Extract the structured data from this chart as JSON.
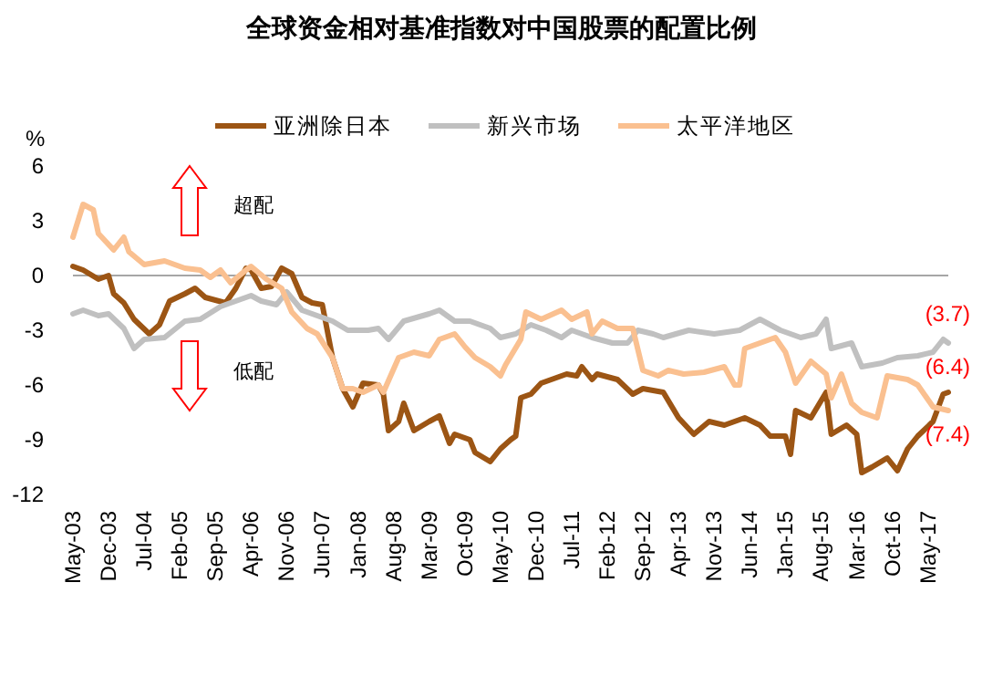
{
  "chart_data": {
    "type": "line",
    "title": "全球资金相对基准指数对中国股票的配置比例",
    "ylabel": "%",
    "legend": "top",
    "xlim": [
      "2003-05",
      "2017-09"
    ],
    "xticks": [
      {
        "value": "2003-05",
        "label": "May-03"
      },
      {
        "value": "2003-12",
        "label": "Dec-03"
      },
      {
        "value": "2004-07",
        "label": "Jul-04"
      },
      {
        "value": "2005-02",
        "label": "Feb-05"
      },
      {
        "value": "2005-09",
        "label": "Sep-05"
      },
      {
        "value": "2006-04",
        "label": "Apr-06"
      },
      {
        "value": "2006-11",
        "label": "Nov-06"
      },
      {
        "value": "2007-06",
        "label": "Jun-07"
      },
      {
        "value": "2008-01",
        "label": "Jan-08"
      },
      {
        "value": "2008-08",
        "label": "Aug-08"
      },
      {
        "value": "2009-03",
        "label": "Mar-09"
      },
      {
        "value": "2009-10",
        "label": "Oct-09"
      },
      {
        "value": "2010-05",
        "label": "May-10"
      },
      {
        "value": "2010-12",
        "label": "Dec-10"
      },
      {
        "value": "2011-07",
        "label": "Jul-11"
      },
      {
        "value": "2012-02",
        "label": "Feb-12"
      },
      {
        "value": "2012-09",
        "label": "Sep-12"
      },
      {
        "value": "2013-04",
        "label": "Apr-13"
      },
      {
        "value": "2013-11",
        "label": "Nov-13"
      },
      {
        "value": "2014-06",
        "label": "Jun-14"
      },
      {
        "value": "2015-01",
        "label": "Jan-15"
      },
      {
        "value": "2015-08",
        "label": "Aug-15"
      },
      {
        "value": "2016-03",
        "label": "Mar-16"
      },
      {
        "value": "2016-10",
        "label": "Oct-16"
      },
      {
        "value": "2017-05",
        "label": "May-17"
      }
    ],
    "ylim": [
      -12,
      6
    ],
    "yticks": [
      6,
      3,
      0,
      -3,
      -6,
      -9,
      -12
    ],
    "ref_lines": [
      {
        "axis": "y",
        "value": 0,
        "color": "#a6a6a6"
      }
    ],
    "annotations": [
      "超配",
      "低配",
      {
        "text": "(3.7)",
        "x": "2017-09",
        "y": -3.7
      },
      {
        "text": "(6.4)",
        "x": "2017-09",
        "y": -6.4
      },
      {
        "text": "(7.4)",
        "x": "2017-09",
        "y": -7.4
      }
    ],
    "series": [
      {
        "name": "亚洲除日本",
        "color": "#9c5514",
        "x": [
          "2003-05",
          "2003-07",
          "2003-10",
          "2003-12",
          "2004-01",
          "2004-03",
          "2004-05",
          "2004-08",
          "2004-10",
          "2004-12",
          "2005-03",
          "2005-05",
          "2005-07",
          "2005-11",
          "2006-01",
          "2006-03",
          "2006-04",
          "2006-06",
          "2006-08",
          "2006-10",
          "2006-12",
          "2007-02",
          "2007-04",
          "2007-06",
          "2007-08",
          "2007-10",
          "2007-12",
          "2008-02",
          "2008-05",
          "2008-06",
          "2008-07",
          "2008-09",
          "2008-10",
          "2008-12",
          "2009-03",
          "2009-05",
          "2009-07",
          "2009-08",
          "2009-11",
          "2009-12",
          "2010-03",
          "2010-05",
          "2010-07",
          "2010-08",
          "2010-09",
          "2010-11",
          "2011-01",
          "2011-03",
          "2011-06",
          "2011-08",
          "2011-09",
          "2011-11",
          "2011-12",
          "2012-04",
          "2012-07",
          "2012-09",
          "2013-01",
          "2013-04",
          "2013-07",
          "2013-10",
          "2014-01",
          "2014-05",
          "2014-08",
          "2014-10",
          "2015-01",
          "2015-02",
          "2015-03",
          "2015-06",
          "2015-09",
          "2015-10",
          "2016-01",
          "2016-03",
          "2016-04",
          "2016-06",
          "2016-09",
          "2016-11",
          "2017-01",
          "2017-03",
          "2017-06",
          "2017-08",
          "2017-09"
        ],
        "values": [
          0.5,
          0.3,
          -0.2,
          0,
          -1,
          -1.5,
          -2.4,
          -3.2,
          -2.7,
          -1.4,
          -1,
          -0.7,
          -1.2,
          -1.5,
          -0.7,
          0.4,
          0.3,
          -0.7,
          -0.6,
          0.4,
          0.1,
          -1.2,
          -1.5,
          -1.6,
          -4.5,
          -6.2,
          -7.2,
          -5.9,
          -6,
          -6.5,
          -8.5,
          -8,
          -7,
          -8.5,
          -8,
          -7.7,
          -9.2,
          -8.7,
          -9,
          -9.7,
          -10.2,
          -9.5,
          -9,
          -8.8,
          -6.7,
          -6.5,
          -5.9,
          -5.7,
          -5.4,
          -5.5,
          -5,
          -5.7,
          -5.4,
          -5.7,
          -6.5,
          -6.2,
          -6.4,
          -7.8,
          -8.7,
          -8,
          -8.2,
          -7.8,
          -8.2,
          -8.8,
          -8.8,
          -9.8,
          -7.4,
          -7.8,
          -6.4,
          -8.7,
          -8.2,
          -8.7,
          -10.8,
          -10.5,
          -10,
          -10.7,
          -9.5,
          -8.8,
          -8,
          -6.5,
          -6.4
        ]
      },
      {
        "name": "新兴市场",
        "color": "#c0c0c0",
        "x": [
          "2003-05",
          "2003-07",
          "2003-10",
          "2003-12",
          "2004-03",
          "2004-05",
          "2004-07",
          "2004-11",
          "2005-03",
          "2005-06",
          "2005-10",
          "2006-01",
          "2006-04",
          "2006-06",
          "2006-09",
          "2006-11",
          "2007-02",
          "2007-05",
          "2007-08",
          "2007-11",
          "2008-03",
          "2008-05",
          "2008-07",
          "2008-10",
          "2009-03",
          "2009-05",
          "2009-08",
          "2009-11",
          "2010-03",
          "2010-05",
          "2010-08",
          "2010-11",
          "2011-02",
          "2011-05",
          "2011-07",
          "2011-11",
          "2012-03",
          "2012-06",
          "2012-08",
          "2012-11",
          "2013-01",
          "2013-06",
          "2013-11",
          "2014-04",
          "2014-08",
          "2014-12",
          "2015-04",
          "2015-07",
          "2015-09",
          "2015-10",
          "2016-02",
          "2016-04",
          "2016-08",
          "2016-11",
          "2017-03",
          "2017-06",
          "2017-08",
          "2017-09"
        ],
        "values": [
          -2.1,
          -1.9,
          -2.2,
          -2.1,
          -2.9,
          -4,
          -3.5,
          -3.4,
          -2.5,
          -2.4,
          -1.7,
          -1.4,
          -1.1,
          -1.4,
          -1.6,
          -0.9,
          -1.9,
          -2.2,
          -2.5,
          -3,
          -3,
          -2.9,
          -3.5,
          -2.5,
          -2.1,
          -1.9,
          -2.5,
          -2.5,
          -2.9,
          -3.4,
          -3.2,
          -2.7,
          -3,
          -3.4,
          -3,
          -3.4,
          -3.7,
          -3.7,
          -3,
          -3.2,
          -3.4,
          -3,
          -3.2,
          -3,
          -2.4,
          -3,
          -3.4,
          -3.2,
          -2.4,
          -4,
          -3.7,
          -5,
          -4.8,
          -4.5,
          -4.4,
          -4.2,
          -3.5,
          -3.7
        ]
      },
      {
        "name": "太平洋地区",
        "color": "#fac090",
        "x": [
          "2003-05",
          "2003-07",
          "2003-09",
          "2003-10",
          "2004-01",
          "2004-03",
          "2004-04",
          "2004-07",
          "2004-11",
          "2005-03",
          "2005-06",
          "2005-08",
          "2005-10",
          "2005-12",
          "2006-03",
          "2006-04",
          "2006-07",
          "2006-10",
          "2006-12",
          "2007-03",
          "2007-05",
          "2007-08",
          "2007-10",
          "2007-12",
          "2008-02",
          "2008-05",
          "2008-06",
          "2008-09",
          "2008-12",
          "2009-03",
          "2009-05",
          "2009-08",
          "2009-10",
          "2009-12",
          "2010-03",
          "2010-05",
          "2010-06",
          "2010-09",
          "2010-10",
          "2011-01",
          "2011-05",
          "2011-07",
          "2011-10",
          "2011-11",
          "2012-01",
          "2012-04",
          "2012-07",
          "2012-09",
          "2012-12",
          "2013-02",
          "2013-05",
          "2013-09",
          "2014-01",
          "2014-03",
          "2014-04",
          "2014-05",
          "2014-08",
          "2014-11",
          "2015-01",
          "2015-03",
          "2015-06",
          "2015-09",
          "2015-10",
          "2015-12",
          "2016-02",
          "2016-04",
          "2016-07",
          "2016-09",
          "2017-01",
          "2017-03",
          "2017-06",
          "2017-09"
        ],
        "values": [
          2.1,
          3.9,
          3.6,
          2.3,
          1.4,
          2.1,
          1.3,
          0.6,
          0.8,
          0.4,
          0.3,
          -0.1,
          0.3,
          -0.4,
          0.3,
          0.5,
          -0.2,
          -0.7,
          -2,
          -2.9,
          -3.2,
          -4.5,
          -6.2,
          -6.2,
          -6.4,
          -6,
          -6.4,
          -4.5,
          -4.2,
          -4.4,
          -3.5,
          -3.2,
          -3.9,
          -4.5,
          -5,
          -5.5,
          -4.9,
          -3.5,
          -2,
          -2.4,
          -1.9,
          -2.4,
          -2,
          -3.2,
          -2.5,
          -2.9,
          -2.9,
          -5.2,
          -5.5,
          -5.2,
          -5.4,
          -5.3,
          -5,
          -6,
          -6,
          -4,
          -3.7,
          -3.4,
          -4.2,
          -5.9,
          -4.7,
          -5.4,
          -6.7,
          -5.4,
          -7,
          -7.5,
          -7.8,
          -5.5,
          -5.7,
          -6,
          -7.2,
          -7.4
        ]
      }
    ]
  }
}
